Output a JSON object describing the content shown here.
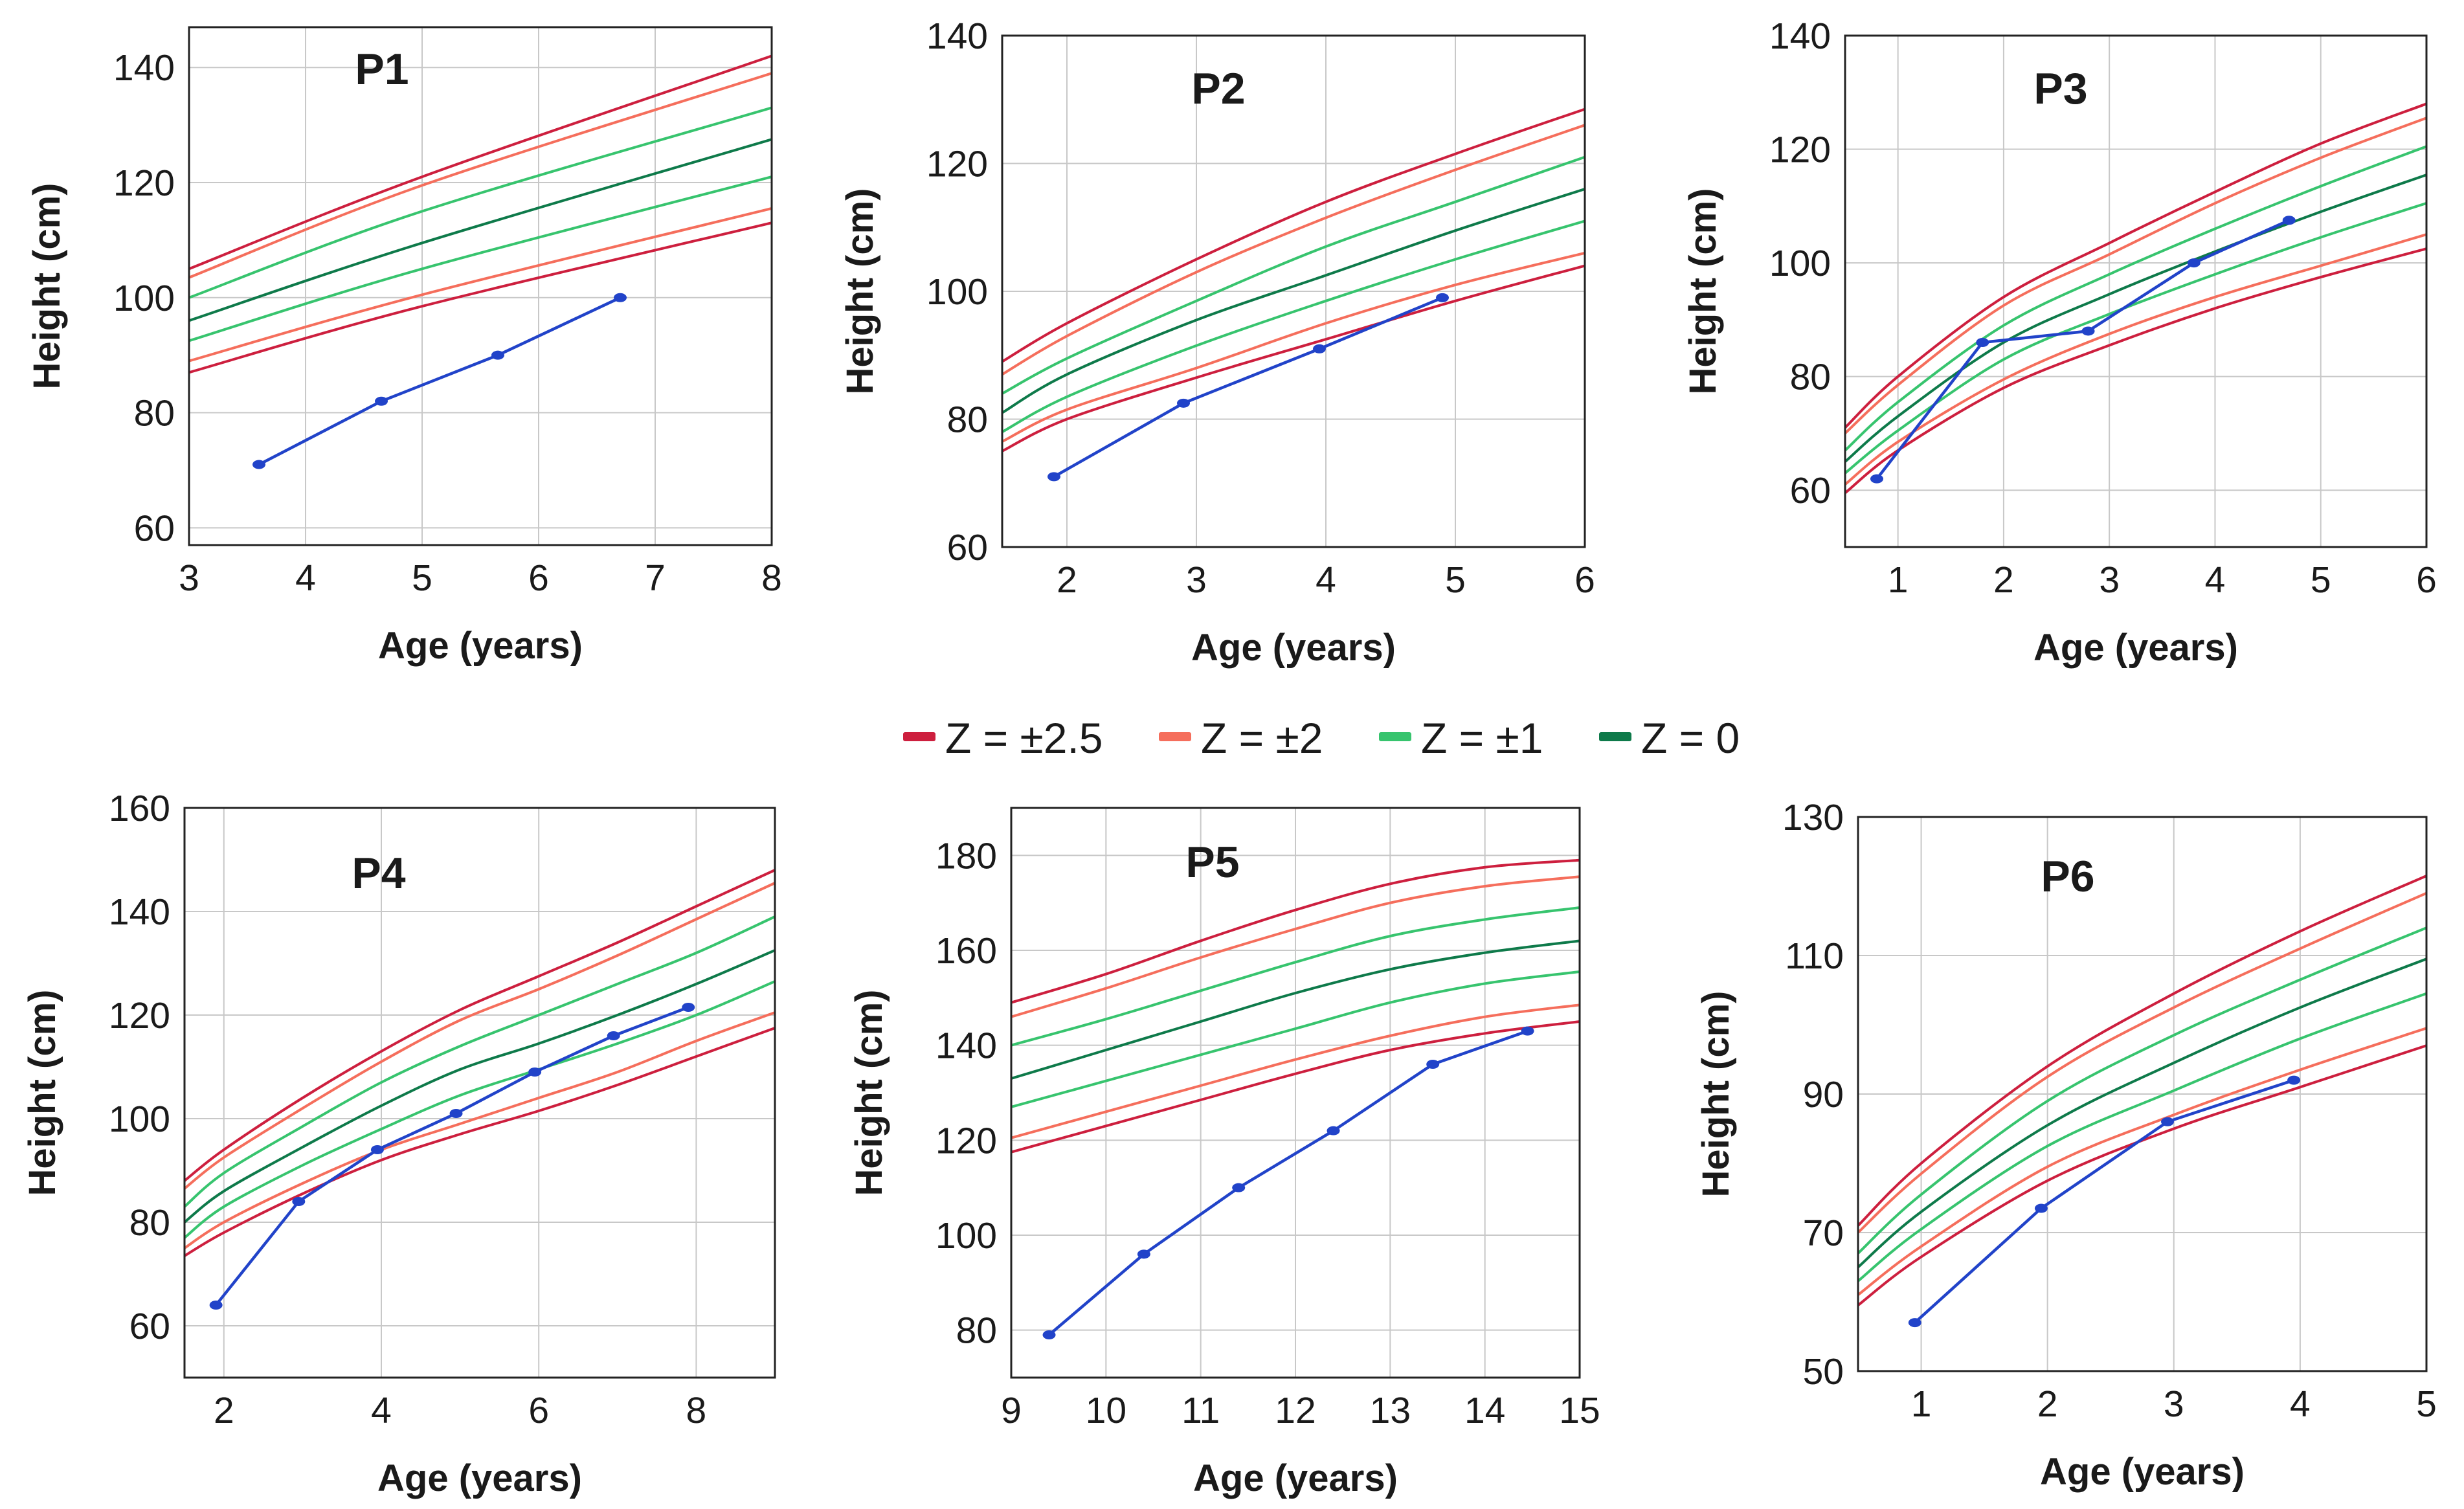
{
  "figure": {
    "colors": {
      "z25": "#cd1f3e",
      "z2": "#f56e5c",
      "z1": "#37c46e",
      "z0": "#0e7a4a",
      "patient": "#2143c9",
      "grid": "#c8c8c8",
      "frame": "#222222"
    }
  },
  "legend": {
    "items": [
      {
        "label": "Z = ±2.5",
        "color": "#cd1f3e"
      },
      {
        "label": "Z = ±2",
        "color": "#f56e5c"
      },
      {
        "label": "Z = ±1",
        "color": "#37c46e"
      },
      {
        "label": "Z = 0",
        "color": "#0e7a4a"
      }
    ]
  },
  "chart_data": [
    {
      "type": "line",
      "title": "P1",
      "xlabel": "Age (years)",
      "ylabel": "Height (cm)",
      "xlim": [
        3,
        8
      ],
      "ylim": [
        57,
        147
      ],
      "xticks": [
        3,
        4,
        5,
        6,
        7,
        8
      ],
      "yticks": [
        60,
        80,
        100,
        120,
        140
      ],
      "grid": true,
      "reference_x": [
        3,
        5,
        8
      ],
      "reference_series": [
        {
          "name": "Z = +2.5",
          "band": "z25",
          "values": [
            105,
            121,
            142
          ]
        },
        {
          "name": "Z = +2",
          "band": "z2",
          "values": [
            103.5,
            119.5,
            139
          ]
        },
        {
          "name": "Z = +1",
          "band": "z1",
          "values": [
            100,
            115,
            133
          ]
        },
        {
          "name": "Z = 0",
          "band": "z0",
          "values": [
            96,
            109.5,
            127.5
          ]
        },
        {
          "name": "Z = -1",
          "band": "z1",
          "values": [
            92.5,
            105,
            121
          ]
        },
        {
          "name": "Z = -2",
          "band": "z2",
          "values": [
            89,
            100.5,
            115.5
          ]
        },
        {
          "name": "Z = -2.5",
          "band": "z25",
          "values": [
            87,
            98.5,
            113
          ]
        }
      ],
      "patient": {
        "x": [
          3.6,
          4.65,
          5.65,
          6.7
        ],
        "y": [
          71,
          82,
          90,
          100
        ]
      }
    },
    {
      "type": "line",
      "title": "P2",
      "xlabel": "Age (years)",
      "ylabel": "Height (cm)",
      "xlim": [
        1.5,
        6
      ],
      "ylim": [
        60,
        140
      ],
      "xticks": [
        2,
        3,
        4,
        5,
        6
      ],
      "yticks": [
        60,
        80,
        100,
        120,
        140
      ],
      "grid": true,
      "reference_x": [
        1.5,
        2,
        3,
        4,
        5,
        6
      ],
      "reference_series": [
        {
          "name": "Z = +2.5",
          "band": "z25",
          "values": [
            89,
            95,
            105,
            114,
            121.5,
            128.5
          ]
        },
        {
          "name": "Z = +2",
          "band": "z2",
          "values": [
            87,
            93,
            103,
            111.5,
            119,
            126
          ]
        },
        {
          "name": "Z = +1",
          "band": "z1",
          "values": [
            84,
            89.5,
            98.5,
            107,
            114,
            121
          ]
        },
        {
          "name": "Z = 0",
          "band": "z0",
          "values": [
            81,
            87,
            95.5,
            102.5,
            109.5,
            116
          ]
        },
        {
          "name": "Z = -1",
          "band": "z1",
          "values": [
            78,
            83.5,
            91.5,
            98.5,
            105,
            111
          ]
        },
        {
          "name": "Z = -2",
          "band": "z2",
          "values": [
            76.5,
            81.5,
            88,
            95,
            101,
            106
          ]
        },
        {
          "name": "Z = -2.5",
          "band": "z25",
          "values": [
            75,
            80,
            86.5,
            92.5,
            98.5,
            104
          ]
        }
      ],
      "patient": {
        "x": [
          1.9,
          2.9,
          3.95,
          4.9
        ],
        "y": [
          71,
          82.5,
          91,
          99
        ]
      }
    },
    {
      "type": "line",
      "title": "P3",
      "xlabel": "Age (years)",
      "ylabel": "Height (cm)",
      "xlim": [
        0.5,
        6
      ],
      "ylim": [
        50,
        140
      ],
      "xticks": [
        1,
        2,
        3,
        4,
        5,
        6
      ],
      "yticks": [
        60,
        80,
        100,
        120,
        140
      ],
      "grid": true,
      "reference_x": [
        0.5,
        1,
        2,
        3,
        4,
        5,
        6
      ],
      "reference_series": [
        {
          "name": "Z = +2.5",
          "band": "z25",
          "values": [
            71,
            80,
            94,
            103.5,
            112.5,
            121,
            128
          ]
        },
        {
          "name": "Z = +2",
          "band": "z2",
          "values": [
            70,
            78.5,
            92.5,
            101.5,
            110.5,
            118.5,
            125.5
          ]
        },
        {
          "name": "Z = +1",
          "band": "z1",
          "values": [
            67,
            75.5,
            89,
            98,
            106,
            113.5,
            120.5
          ]
        },
        {
          "name": "Z = 0",
          "band": "z0",
          "values": [
            65,
            73,
            86,
            94.5,
            102,
            109,
            115.5
          ]
        },
        {
          "name": "Z = -1",
          "band": "z1",
          "values": [
            63,
            70.5,
            83,
            91,
            98,
            104.5,
            110.5
          ]
        },
        {
          "name": "Z = -2",
          "band": "z2",
          "values": [
            61,
            68.5,
            79.5,
            87.5,
            94,
            99.5,
            105
          ]
        },
        {
          "name": "Z = -2.5",
          "band": "z25",
          "values": [
            59.5,
            67,
            78,
            85.5,
            92,
            97.5,
            102.5
          ]
        }
      ],
      "patient": {
        "x": [
          0.8,
          1.8,
          2.8,
          3.8,
          4.7
        ],
        "y": [
          62,
          86,
          88,
          100,
          107.5
        ]
      }
    },
    {
      "type": "line",
      "title": "P4",
      "xlabel": "Age (years)",
      "ylabel": "Height (cm)",
      "xlim": [
        1.5,
        9
      ],
      "ylim": [
        50,
        160
      ],
      "xticks": [
        2,
        4,
        6,
        8
      ],
      "yticks": [
        60,
        80,
        100,
        120,
        140,
        160
      ],
      "grid": true,
      "reference_x": [
        1.5,
        2,
        3,
        4,
        5,
        6,
        7,
        8,
        9
      ],
      "reference_series": [
        {
          "name": "Z = +2.5",
          "band": "z25",
          "values": [
            88,
            94,
            104,
            113,
            121,
            127.5,
            134,
            141,
            148
          ]
        },
        {
          "name": "Z = +2",
          "band": "z2",
          "values": [
            86.5,
            92.5,
            102,
            111,
            119,
            125,
            131.5,
            138.5,
            145.5
          ]
        },
        {
          "name": "Z = +1",
          "band": "z1",
          "values": [
            83,
            89.5,
            98.5,
            107,
            114,
            120,
            126,
            132,
            139
          ]
        },
        {
          "name": "Z = 0",
          "band": "z0",
          "values": [
            80,
            86,
            94.5,
            102.5,
            109.5,
            114.5,
            120,
            126,
            132.5
          ]
        },
        {
          "name": "Z = -1",
          "band": "z1",
          "values": [
            77,
            83,
            91,
            98,
            104.5,
            109.5,
            114.5,
            120,
            126.5
          ]
        },
        {
          "name": "Z = -2",
          "band": "z2",
          "values": [
            75,
            80,
            87.5,
            94,
            99,
            104,
            109,
            115,
            120.5
          ]
        },
        {
          "name": "Z = -2.5",
          "band": "z25",
          "values": [
            73.5,
            78,
            85.5,
            92,
            97,
            101.5,
            106.5,
            112,
            117.5
          ]
        }
      ],
      "patient": {
        "x": [
          1.9,
          2.95,
          3.95,
          4.95,
          5.95,
          6.95,
          7.9
        ],
        "y": [
          64,
          84,
          94,
          101,
          109,
          116,
          121.5
        ]
      }
    },
    {
      "type": "line",
      "title": "P5",
      "xlabel": "Age (years)",
      "ylabel": "Height (cm)",
      "xlim": [
        9,
        15
      ],
      "ylim": [
        70,
        190
      ],
      "xticks": [
        9,
        10,
        11,
        12,
        13,
        14,
        15
      ],
      "yticks": [
        80,
        100,
        120,
        140,
        160,
        180
      ],
      "grid": true,
      "reference_x": [
        9,
        10,
        11,
        12,
        13,
        14,
        15
      ],
      "reference_series": [
        {
          "name": "Z = +2.5",
          "band": "z25",
          "values": [
            149,
            155,
            162,
            168.5,
            174,
            177.5,
            179
          ]
        },
        {
          "name": "Z = +2",
          "band": "z2",
          "values": [
            146,
            152,
            158.5,
            164.5,
            170,
            173.5,
            175.5
          ]
        },
        {
          "name": "Z = +1",
          "band": "z1",
          "values": [
            140,
            145.5,
            151.5,
            157.5,
            163,
            166.5,
            169
          ]
        },
        {
          "name": "Z = 0",
          "band": "z0",
          "values": [
            133,
            139,
            145,
            151,
            156,
            159.5,
            162
          ]
        },
        {
          "name": "Z = -1",
          "band": "z1",
          "values": [
            127,
            132.5,
            138,
            143.5,
            149,
            153,
            155.5
          ]
        },
        {
          "name": "Z = -2",
          "band": "z2",
          "values": [
            120.5,
            126,
            131.5,
            137,
            142,
            146,
            148.5
          ]
        },
        {
          "name": "Z = -2.5",
          "band": "z25",
          "values": [
            117.5,
            123,
            128.5,
            134,
            139,
            142.5,
            145
          ]
        }
      ],
      "patient": {
        "x": [
          9.4,
          10.4,
          11.4,
          12.4,
          13.45,
          14.45
        ],
        "y": [
          79,
          96,
          110,
          122,
          136,
          143
        ]
      }
    },
    {
      "type": "line",
      "title": "P6",
      "xlabel": "Age (years)",
      "ylabel": "Height (cm)",
      "xlim": [
        0.5,
        5
      ],
      "ylim": [
        50,
        130
      ],
      "xticks": [
        1,
        2,
        3,
        4,
        5
      ],
      "yticks": [
        50,
        70,
        90,
        110,
        130
      ],
      "grid": true,
      "reference_x": [
        0.5,
        1,
        2,
        3,
        4,
        5
      ],
      "reference_series": [
        {
          "name": "Z = +2.5",
          "band": "z25",
          "values": [
            71,
            80,
            94,
            104.5,
            113.5,
            121.5
          ]
        },
        {
          "name": "Z = +2",
          "band": "z2",
          "values": [
            70,
            78.5,
            92.5,
            102.5,
            111,
            119
          ]
        },
        {
          "name": "Z = +1",
          "band": "z1",
          "values": [
            67,
            75.5,
            89,
            98.5,
            106.5,
            114
          ]
        },
        {
          "name": "Z = 0",
          "band": "z0",
          "values": [
            65,
            73,
            85.5,
            94.5,
            102.5,
            109.5
          ]
        },
        {
          "name": "Z = -1",
          "band": "z1",
          "values": [
            63,
            70.5,
            82.5,
            90.5,
            98,
            104.5
          ]
        },
        {
          "name": "Z = -2",
          "band": "z2",
          "values": [
            61,
            68,
            79.5,
            87,
            93.5,
            99.5
          ]
        },
        {
          "name": "Z = -2.5",
          "band": "z25",
          "values": [
            59.5,
            66.5,
            77.5,
            85,
            91,
            97
          ]
        }
      ],
      "patient": {
        "x": [
          0.95,
          1.95,
          2.95,
          3.95
        ],
        "y": [
          57,
          73.5,
          86,
          92
        ]
      }
    }
  ]
}
